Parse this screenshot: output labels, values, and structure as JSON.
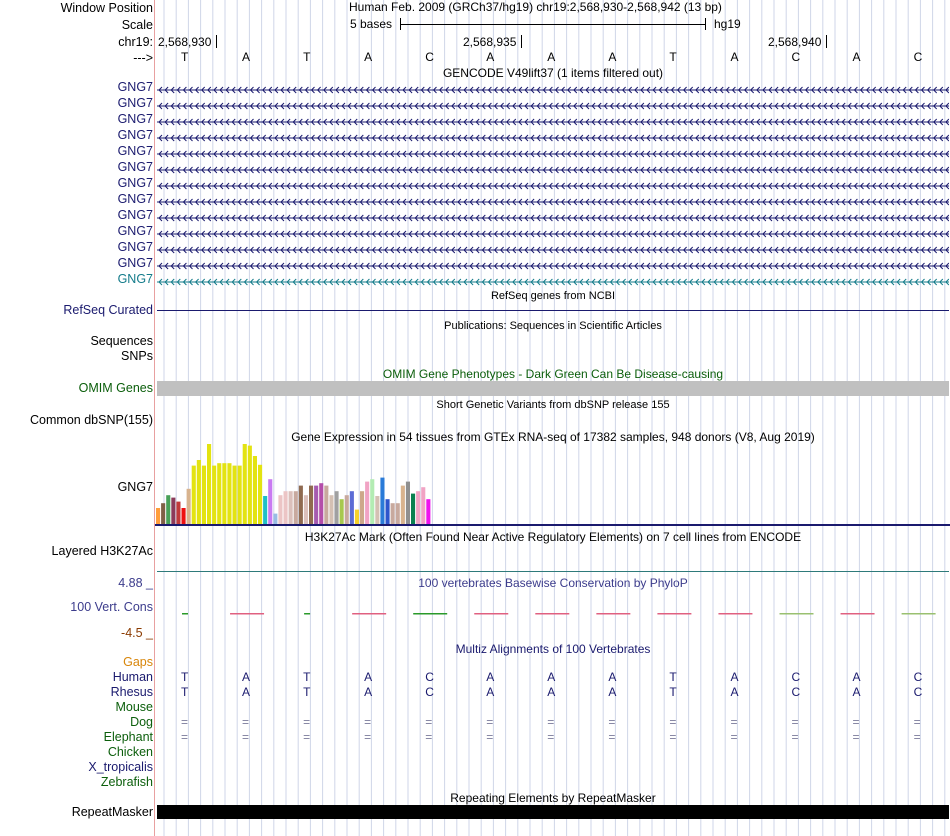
{
  "header": {
    "window_position_label": "Window Position",
    "scale_label": "Scale",
    "chrom_label": "chr19:",
    "strand_label": "--->",
    "assembly_title": "Human Feb. 2009 (GRCh37/hg19)   chr19:2,568,930-2,568,942 (13 bp)",
    "scale_text": "5 bases",
    "db_name": "hg19",
    "positions": [
      "2,568,930",
      "2,568,935",
      "2,568,940"
    ]
  },
  "bases": [
    "T",
    "A",
    "T",
    "A",
    "C",
    "A",
    "A",
    "A",
    "T",
    "A",
    "C",
    "A",
    "C"
  ],
  "tracks": {
    "gencode": {
      "title": "GENCODE V49lift37 (1 items filtered out)",
      "items": [
        "GNG7",
        "GNG7",
        "GNG7",
        "GNG7",
        "GNG7",
        "GNG7",
        "GNG7",
        "GNG7",
        "GNG7",
        "GNG7",
        "GNG7",
        "GNG7",
        "GNG7"
      ]
    },
    "refseq": {
      "title": "RefSeq genes from NCBI",
      "label": "RefSeq Curated"
    },
    "publications": {
      "title": "Publications: Sequences in Scientific Articles",
      "label1": "Sequences",
      "label2": "SNPs"
    },
    "omim": {
      "title": "OMIM Gene Phenotypes - Dark Green Can Be Disease-causing",
      "label": "OMIM Genes"
    },
    "dbsnp": {
      "title": "Short Genetic Variants from dbSNP release 155",
      "label": "Common dbSNP(155)"
    },
    "gtex": {
      "title": "Gene Expression in 54 tissues from GTEx RNA-seq of 17382 samples, 948 donors (V8, Aug 2019)",
      "label": "GNG7",
      "values": [
        0.2,
        0.26,
        0.36,
        0.33,
        0.28,
        0.2,
        0.44,
        0.73,
        0.8,
        0.73,
        1.0,
        0.73,
        0.76,
        0.76,
        0.76,
        0.73,
        0.73,
        1.0,
        0.98,
        0.85,
        0.74,
        0.35,
        0.56,
        0.13,
        0.36,
        0.41,
        0.41,
        0.41,
        0.48,
        0.36,
        0.48,
        0.48,
        0.51,
        0.48,
        0.36,
        0.41,
        0.31,
        0.36,
        0.41,
        0.18,
        0.41,
        0.53,
        0.56,
        0.35,
        0.58,
        0.31,
        0.26,
        0.26,
        0.48,
        0.53,
        0.38,
        0.41,
        0.46,
        0.31
      ],
      "colors": [
        "#ff9d3b",
        "#7f5f46",
        "#48a058",
        "#8b3b5a",
        "#c03a3a",
        "#ee1111",
        "#d8b38e",
        "#e3e311",
        "#e3e311",
        "#e3e311",
        "#e3e311",
        "#e3e311",
        "#e3e311",
        "#e3e311",
        "#e3e311",
        "#e3e311",
        "#e3e311",
        "#e3e311",
        "#e3e311",
        "#e3e311",
        "#e3e311",
        "#21bfc6",
        "#c97af2",
        "#99bbe4",
        "#ecc5c5",
        "#ecc5c5",
        "#dbc0bb",
        "#c8a99e",
        "#8f6a50",
        "#dbc0bb",
        "#8f6a50",
        "#a65bb0",
        "#b44daa",
        "#c8a99e",
        "#d4c0b3",
        "#a0a0a0",
        "#a7c84f",
        "#c8a99e",
        "#5c6cd5",
        "#f5d02b",
        "#cda88a",
        "#f1a3c4",
        "#b3ecb3",
        "#d4c0b3",
        "#2a7bd8",
        "#2e56cc",
        "#c8a99e",
        "#c8a99e",
        "#d8b38e",
        "#8f8f8f",
        "#0a8050",
        "#f1a3c4",
        "#f1a3c4",
        "#ee12ee"
      ]
    },
    "h3k27ac": {
      "title": "H3K27Ac Mark (Often Found Near Active Regulatory Elements) on 7 cell lines from ENCODE",
      "label": "Layered H3K27Ac"
    },
    "phylop": {
      "title": "100 vertebrates Basewise Conservation by PhyloP",
      "label": "100 Vert. Cons",
      "max": "4.88 _",
      "min": "-4.5 _"
    },
    "multiz": {
      "title": "Multiz Alignments of 100 Vertebrates",
      "gaps_label": "Gaps",
      "species": [
        {
          "name": "Human",
          "row": "T A T A C A A A T A C A C"
        },
        {
          "name": "Rhesus",
          "row": "T A T A C A A A T A C A C"
        },
        {
          "name": "Mouse",
          "row": ""
        },
        {
          "name": "Dog",
          "row": "= = = = = = = = = = = = ="
        },
        {
          "name": "Elephant",
          "row": "= = = = = = = = = = = = ="
        },
        {
          "name": "Chicken",
          "row": ""
        },
        {
          "name": "X_tropicalis",
          "row": ""
        },
        {
          "name": "Zebrafish",
          "row": ""
        }
      ]
    },
    "repeatmasker": {
      "title": "Repeating Elements by RepeatMasker",
      "label": "RepeatMasker"
    }
  },
  "colors": {
    "gene_navy": "#1a1a6e",
    "gene_teal": "#137b8a",
    "omim_green": "#0b5e0b",
    "omim_bar": "#c0c0c0",
    "grid": "#cfd6e8",
    "sidebar": "#e8a0a0"
  }
}
